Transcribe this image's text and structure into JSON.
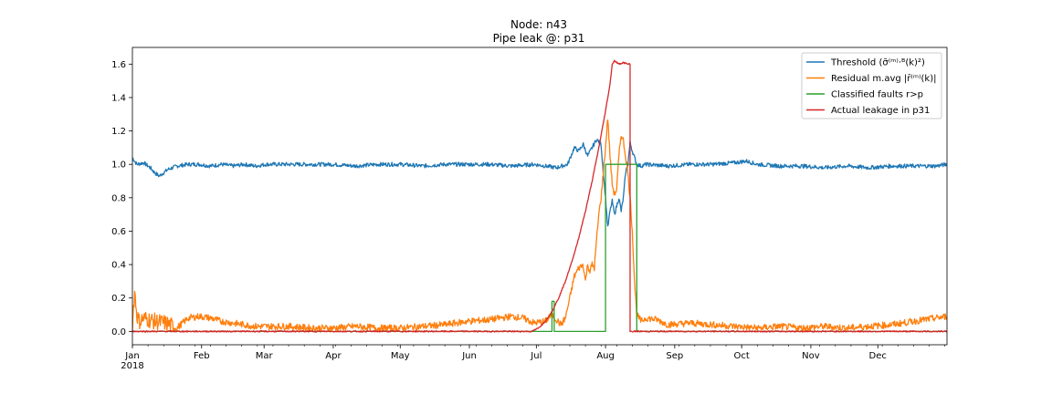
{
  "chart_data": {
    "type": "line",
    "title": "Node: n43",
    "subtitle": "Pipe leak @: p31",
    "xlabel": "",
    "ylabel": "",
    "xlim": [
      0,
      365
    ],
    "ylim": [
      -0.08,
      1.7
    ],
    "year_label": "2018",
    "x_ticks": [
      {
        "label": "Jan",
        "day": 0
      },
      {
        "label": "Feb",
        "day": 31
      },
      {
        "label": "Mar",
        "day": 59
      },
      {
        "label": "Apr",
        "day": 90
      },
      {
        "label": "May",
        "day": 120
      },
      {
        "label": "Jun",
        "day": 151
      },
      {
        "label": "Jul",
        "day": 181
      },
      {
        "label": "Aug",
        "day": 212
      },
      {
        "label": "Sep",
        "day": 243
      },
      {
        "label": "Oct",
        "day": 273
      },
      {
        "label": "Nov",
        "day": 304
      },
      {
        "label": "Dec",
        "day": 334
      }
    ],
    "y_ticks": [
      "0.0",
      "0.2",
      "0.4",
      "0.6",
      "0.8",
      "1.0",
      "1.2",
      "1.4",
      "1.6"
    ],
    "legend_placement": "upper right",
    "grid": false,
    "series": [
      {
        "name": "Threshold (σ̄⁽ᵐ⁾·ᴮ(k)²)",
        "color": "#1f77b4",
        "points": [
          [
            0,
            1.04
          ],
          [
            2,
            1.0
          ],
          [
            5,
            1.01
          ],
          [
            8,
            0.98
          ],
          [
            10,
            0.95
          ],
          [
            12,
            0.93
          ],
          [
            14,
            0.95
          ],
          [
            16,
            0.97
          ],
          [
            20,
            0.99
          ],
          [
            25,
            1.0
          ],
          [
            30,
            1.0
          ],
          [
            35,
            0.99
          ],
          [
            40,
            1.0
          ],
          [
            45,
            0.99
          ],
          [
            50,
            1.0
          ],
          [
            55,
            0.99
          ],
          [
            60,
            1.0
          ],
          [
            70,
            1.0
          ],
          [
            80,
            1.0
          ],
          [
            90,
            1.0
          ],
          [
            100,
            0.99
          ],
          [
            110,
            1.0
          ],
          [
            120,
            1.0
          ],
          [
            130,
            0.99
          ],
          [
            140,
            1.0
          ],
          [
            150,
            1.0
          ],
          [
            160,
            1.0
          ],
          [
            170,
            0.99
          ],
          [
            180,
            1.0
          ],
          [
            185,
            0.99
          ],
          [
            190,
            0.98
          ],
          [
            195,
            1.0
          ],
          [
            198,
            1.1
          ],
          [
            200,
            1.08
          ],
          [
            202,
            1.12
          ],
          [
            204,
            1.05
          ],
          [
            206,
            1.1
          ],
          [
            208,
            1.15
          ],
          [
            210,
            1.12
          ],
          [
            211,
            0.95
          ],
          [
            212,
            0.8
          ],
          [
            213,
            0.62
          ],
          [
            214,
            0.72
          ],
          [
            215,
            0.78
          ],
          [
            216,
            0.7
          ],
          [
            217,
            0.75
          ],
          [
            218,
            0.8
          ],
          [
            219,
            0.72
          ],
          [
            220,
            0.8
          ],
          [
            221,
            0.95
          ],
          [
            222,
            1.0
          ],
          [
            223,
            1.13
          ],
          [
            224,
            1.08
          ],
          [
            226,
            1.0
          ],
          [
            228,
            0.99
          ],
          [
            230,
            1.0
          ],
          [
            240,
            0.99
          ],
          [
            250,
            1.0
          ],
          [
            260,
            1.0
          ],
          [
            270,
            1.01
          ],
          [
            275,
            1.02
          ],
          [
            280,
            1.0
          ],
          [
            290,
            0.99
          ],
          [
            300,
            0.99
          ],
          [
            310,
            0.98
          ],
          [
            320,
            0.99
          ],
          [
            330,
            0.98
          ],
          [
            340,
            0.99
          ],
          [
            350,
            0.99
          ],
          [
            360,
            0.99
          ],
          [
            365,
            1.0
          ]
        ],
        "noise": 0.012
      },
      {
        "name": "Residual m.avg |r̄⁽ᵐ⁾(k)|",
        "color": "#ff7f0e",
        "points": [
          [
            0,
            0.05
          ],
          [
            1,
            0.24
          ],
          [
            2,
            0.1
          ],
          [
            3,
            0.06
          ],
          [
            5,
            0.08
          ],
          [
            10,
            0.06
          ],
          [
            15,
            0.05
          ],
          [
            20,
            0.02
          ],
          [
            25,
            0.08
          ],
          [
            30,
            0.09
          ],
          [
            35,
            0.08
          ],
          [
            40,
            0.06
          ],
          [
            45,
            0.05
          ],
          [
            50,
            0.04
          ],
          [
            55,
            0.03
          ],
          [
            60,
            0.03
          ],
          [
            70,
            0.03
          ],
          [
            80,
            0.02
          ],
          [
            90,
            0.02
          ],
          [
            100,
            0.03
          ],
          [
            110,
            0.02
          ],
          [
            120,
            0.02
          ],
          [
            130,
            0.03
          ],
          [
            140,
            0.04
          ],
          [
            150,
            0.06
          ],
          [
            160,
            0.07
          ],
          [
            170,
            0.09
          ],
          [
            175,
            0.08
          ],
          [
            180,
            0.05
          ],
          [
            185,
            0.06
          ],
          [
            188,
            0.1
          ],
          [
            190,
            0.07
          ],
          [
            192,
            0.04
          ],
          [
            194,
            0.08
          ],
          [
            196,
            0.2
          ],
          [
            198,
            0.33
          ],
          [
            200,
            0.38
          ],
          [
            202,
            0.4
          ],
          [
            203,
            0.3
          ],
          [
            204,
            0.4
          ],
          [
            205,
            0.36
          ],
          [
            206,
            0.4
          ],
          [
            207,
            0.38
          ],
          [
            208,
            0.55
          ],
          [
            209,
            0.7
          ],
          [
            210,
            0.8
          ],
          [
            211,
            0.95
          ],
          [
            212,
            1.1
          ],
          [
            213,
            1.28
          ],
          [
            214,
            1.05
          ],
          [
            215,
            0.88
          ],
          [
            216,
            0.82
          ],
          [
            217,
            0.85
          ],
          [
            218,
            1.05
          ],
          [
            219,
            1.18
          ],
          [
            220,
            1.14
          ],
          [
            221,
            1.05
          ],
          [
            222,
            0.95
          ],
          [
            223,
            0.8
          ],
          [
            224,
            0.6
          ],
          [
            225,
            0.3
          ],
          [
            226,
            0.1
          ],
          [
            228,
            0.06
          ],
          [
            230,
            0.08
          ],
          [
            235,
            0.07
          ],
          [
            240,
            0.04
          ],
          [
            250,
            0.05
          ],
          [
            260,
            0.04
          ],
          [
            270,
            0.03
          ],
          [
            280,
            0.02
          ],
          [
            290,
            0.03
          ],
          [
            300,
            0.02
          ],
          [
            310,
            0.03
          ],
          [
            320,
            0.02
          ],
          [
            330,
            0.03
          ],
          [
            340,
            0.04
          ],
          [
            350,
            0.06
          ],
          [
            360,
            0.08
          ],
          [
            365,
            0.09
          ]
        ],
        "noise": 0.02
      },
      {
        "name": "Classified faults r>p",
        "color": "#2ca02c",
        "points": [
          [
            0,
            0
          ],
          [
            188,
            0
          ],
          [
            188,
            0.18
          ],
          [
            189,
            0.18
          ],
          [
            189,
            0
          ],
          [
            212,
            0
          ],
          [
            212,
            1.0
          ],
          [
            226,
            1.0
          ],
          [
            226,
            0
          ],
          [
            365,
            0
          ]
        ],
        "noise": 0
      },
      {
        "name": "Actual leakage in p31",
        "color": "#d62728",
        "points": [
          [
            0,
            0
          ],
          [
            179,
            0
          ],
          [
            182,
            0.02
          ],
          [
            185,
            0.06
          ],
          [
            188,
            0.12
          ],
          [
            191,
            0.2
          ],
          [
            194,
            0.3
          ],
          [
            197,
            0.42
          ],
          [
            200,
            0.56
          ],
          [
            203,
            0.72
          ],
          [
            206,
            0.9
          ],
          [
            209,
            1.1
          ],
          [
            212,
            1.32
          ],
          [
            214,
            1.48
          ],
          [
            215,
            1.6
          ],
          [
            216,
            1.62
          ],
          [
            218,
            1.6
          ],
          [
            220,
            1.61
          ],
          [
            222,
            1.6
          ],
          [
            223,
            1.6
          ],
          [
            223,
            0
          ],
          [
            365,
            0
          ]
        ],
        "noise": 0.004
      }
    ]
  }
}
